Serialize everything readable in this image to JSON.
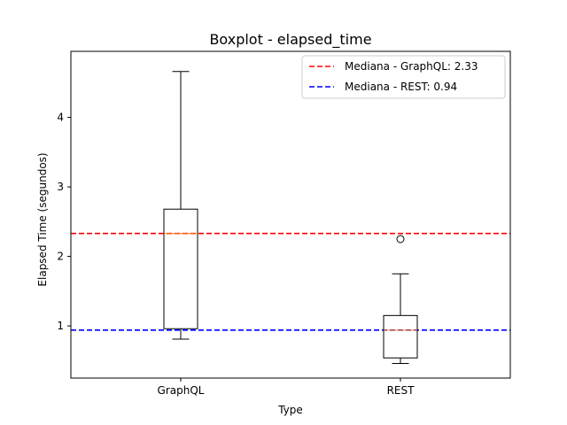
{
  "chart_data": {
    "type": "boxplot",
    "title": "Boxplot - elapsed_time",
    "xlabel": "Type",
    "ylabel": "Elapsed Time (segundos)",
    "categories": [
      "GraphQL",
      "REST"
    ],
    "ylim": [
      0.25,
      4.95
    ],
    "yticks": [
      1,
      2,
      3,
      4
    ],
    "grid": false,
    "boxes": [
      {
        "category": "GraphQL",
        "whisker_low": 0.81,
        "q1": 0.96,
        "median": 2.33,
        "q3": 2.68,
        "whisker_high": 4.66,
        "outliers": []
      },
      {
        "category": "REST",
        "whisker_low": 0.46,
        "q1": 0.54,
        "median": 0.94,
        "q3": 1.15,
        "whisker_high": 1.75,
        "outliers": [
          2.25
        ]
      }
    ],
    "reference_lines": [
      {
        "label": "Mediana - GraphQL: 2.33",
        "value": 2.33,
        "color": "#ff0000",
        "style": "dashed"
      },
      {
        "label": "Mediana - REST: 0.94",
        "value": 0.94,
        "color": "#0000ff",
        "style": "dashed"
      }
    ],
    "median_color": "#ff7f0e",
    "legend_position": "top-right"
  }
}
